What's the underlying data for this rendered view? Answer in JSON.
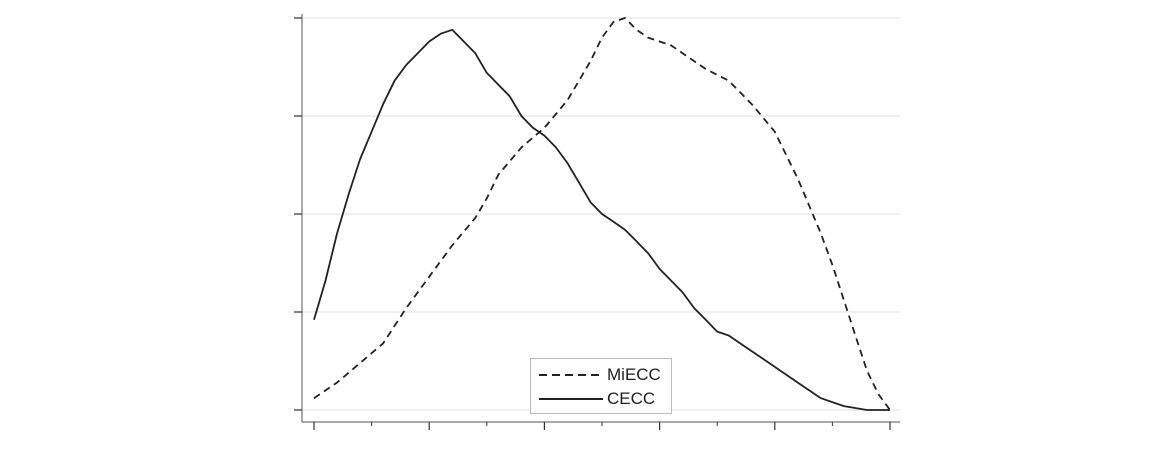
{
  "chart_data": {
    "type": "line",
    "title": "",
    "xlabel": "",
    "ylabel": "",
    "xlim": [
      0,
      100
    ],
    "ylim": [
      0,
      100
    ],
    "grid": "horizontal",
    "legend_position": "bottom-center",
    "x_major_ticks": [
      0,
      20,
      40,
      60,
      80,
      100
    ],
    "x_minor_ticks": [
      10,
      30,
      50,
      70,
      90
    ],
    "y_ticks": [
      0,
      25,
      50,
      75,
      100
    ],
    "series": [
      {
        "name": "MiECC",
        "style": "dashed",
        "color": "#222222",
        "x": [
          0,
          4,
          8,
          12,
          16,
          20,
          24,
          28,
          30,
          32,
          36,
          40,
          44,
          46,
          48,
          50,
          52,
          54,
          56,
          58,
          60,
          62,
          64,
          68,
          72,
          76,
          80,
          82,
          84,
          86,
          88,
          90,
          92,
          94,
          96,
          98,
          100
        ],
        "y": [
          3,
          7,
          12,
          17,
          26,
          34,
          42,
          49,
          54,
          60,
          67,
          72,
          79,
          84,
          89,
          95,
          99,
          100,
          97,
          95,
          94,
          93,
          91,
          87,
          84,
          78,
          71,
          65,
          59,
          52,
          45,
          37,
          28,
          19,
          10,
          4,
          0
        ]
      },
      {
        "name": "CECC",
        "style": "solid",
        "color": "#222222",
        "x": [
          0,
          2,
          4,
          6,
          8,
          10,
          12,
          14,
          16,
          18,
          20,
          22,
          24,
          26,
          28,
          30,
          32,
          34,
          36,
          38,
          40,
          42,
          44,
          46,
          48,
          50,
          52,
          54,
          56,
          58,
          60,
          62,
          64,
          66,
          68,
          70,
          72,
          74,
          76,
          78,
          80,
          84,
          88,
          92,
          96,
          100
        ],
        "y": [
          23,
          33,
          45,
          55,
          64,
          71,
          78,
          84,
          88,
          91,
          94,
          96,
          97,
          94,
          91,
          86,
          83,
          80,
          75,
          72,
          70,
          67,
          63,
          58,
          53,
          50,
          48,
          46,
          43,
          40,
          36,
          33,
          30,
          26,
          23,
          20,
          19,
          17,
          15,
          13,
          11,
          7,
          3,
          1,
          0,
          0
        ]
      }
    ]
  }
}
